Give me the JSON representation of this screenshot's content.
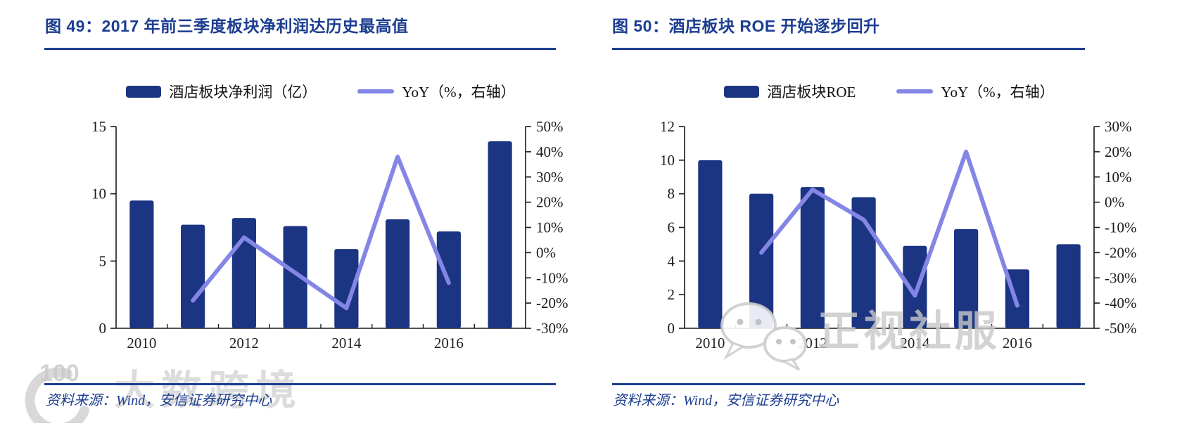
{
  "page": {
    "background": "#ffffff",
    "accent_blue": "#1C3D91",
    "bar_color": "#1B3583",
    "line_color": "#8486E6"
  },
  "charts": [
    {
      "id": "figure-49",
      "title": "图 49：2017 年前三季度板块净利润达历史最高值",
      "source": "资料来源：Wind，安信证券研究中心",
      "legend": [
        {
          "type": "bar",
          "label": "酒店板块净利润（亿）",
          "color": "#1B3583"
        },
        {
          "type": "line",
          "label": "YoY（%，右轴）",
          "color": "#8486E6"
        }
      ],
      "chart_data": {
        "type": "bar+line",
        "categories": [
          "2010",
          "2011",
          "2012",
          "2013",
          "2014",
          "2015",
          "2016",
          "2017"
        ],
        "x_ticks": [
          {
            "index": 0,
            "label": "2010"
          },
          {
            "index": 2,
            "label": "2012"
          },
          {
            "index": 4,
            "label": "2014"
          },
          {
            "index": 6,
            "label": "2016"
          }
        ],
        "series": [
          {
            "name": "酒店板块净利润（亿）",
            "type": "bar",
            "axis": "left",
            "color": "#1B3583",
            "values": [
              9.5,
              7.7,
              8.2,
              7.6,
              5.9,
              8.1,
              7.2,
              13.9
            ]
          },
          {
            "name": "YoY（%，右轴）",
            "type": "line",
            "axis": "right",
            "color": "#8486E6",
            "values": [
              null,
              -19,
              6,
              -8,
              -22,
              38,
              -12,
              null
            ]
          }
        ],
        "left_axis": {
          "min": 0,
          "max": 15,
          "step": 5,
          "tick_labels": [
            "0",
            "5",
            "10",
            "15"
          ]
        },
        "right_axis": {
          "min": -30,
          "max": 50,
          "step": 10,
          "tick_labels": [
            "-30%",
            "-20%",
            "-10%",
            "0%",
            "10%",
            "20%",
            "30%",
            "40%",
            "50%"
          ]
        },
        "grid": false,
        "legend_position": "top"
      }
    },
    {
      "id": "figure-50",
      "title": "图 50：酒店板块 ROE 开始逐步回升",
      "source": "资料来源：Wind，安信证券研究中心",
      "legend": [
        {
          "type": "bar",
          "label": "酒店板块ROE",
          "color": "#1B3583"
        },
        {
          "type": "line",
          "label": "YoY（%，右轴）",
          "color": "#8486E6"
        }
      ],
      "chart_data": {
        "type": "bar+line",
        "categories": [
          "2010",
          "2011",
          "2012",
          "2013",
          "2014",
          "2015",
          "2016",
          "2017"
        ],
        "x_ticks": [
          {
            "index": 0,
            "label": "2010"
          },
          {
            "index": 2,
            "label": "2012"
          },
          {
            "index": 4,
            "label": "2014"
          },
          {
            "index": 6,
            "label": "2016"
          }
        ],
        "series": [
          {
            "name": "酒店板块ROE",
            "type": "bar",
            "axis": "left",
            "color": "#1B3583",
            "values": [
              10.0,
              8.0,
              8.4,
              7.8,
              4.9,
              5.9,
              3.5,
              5.0
            ]
          },
          {
            "name": "YoY（%，右轴）",
            "type": "line",
            "axis": "right",
            "color": "#8486E6",
            "values": [
              null,
              -20,
              5,
              -7,
              -37,
              20,
              -41,
              null
            ]
          }
        ],
        "left_axis": {
          "min": 0,
          "max": 12,
          "step": 2,
          "tick_labels": [
            "0",
            "2",
            "4",
            "6",
            "8",
            "10",
            "12"
          ]
        },
        "right_axis": {
          "min": -50,
          "max": 30,
          "step": 10,
          "tick_labels": [
            "-50%",
            "-40%",
            "-30%",
            "-20%",
            "-10%",
            "0%",
            "10%",
            "20%",
            "30%"
          ]
        },
        "grid": false,
        "legend_position": "top"
      }
    }
  ],
  "watermarks": {
    "bottom_left": {
      "logo_text": "100",
      "text": "大数跨境"
    },
    "bottom_right": {
      "text": "正视社服"
    }
  }
}
